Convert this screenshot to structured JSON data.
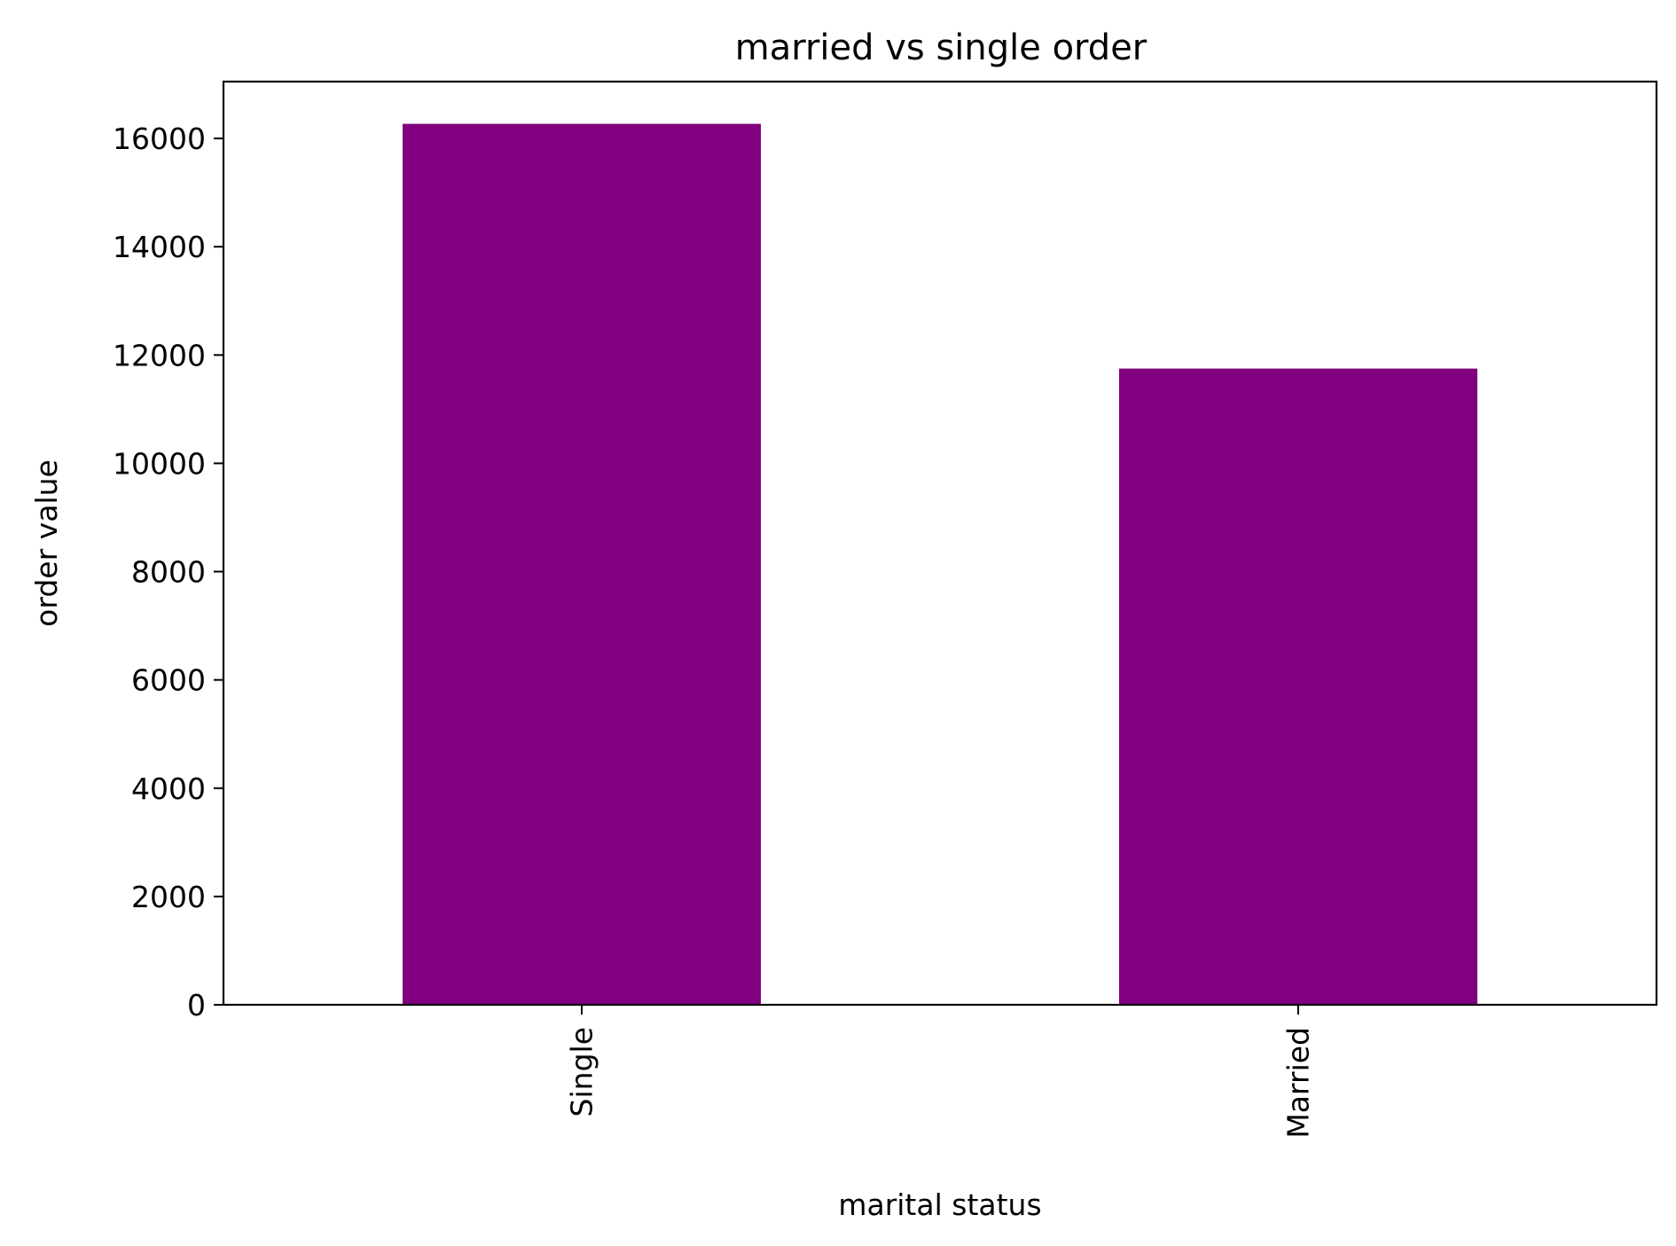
{
  "chart_data": {
    "type": "bar",
    "title": "married vs single order",
    "xlabel": "marital status",
    "ylabel": "order value",
    "categories": [
      "Single",
      "Married"
    ],
    "values": [
      16270,
      11750
    ],
    "ylim": [
      0,
      17050
    ],
    "yticks": [
      0,
      2000,
      4000,
      6000,
      8000,
      10000,
      12000,
      14000,
      16000
    ],
    "bar_color": "#800080",
    "grid": false,
    "legend": "none"
  }
}
